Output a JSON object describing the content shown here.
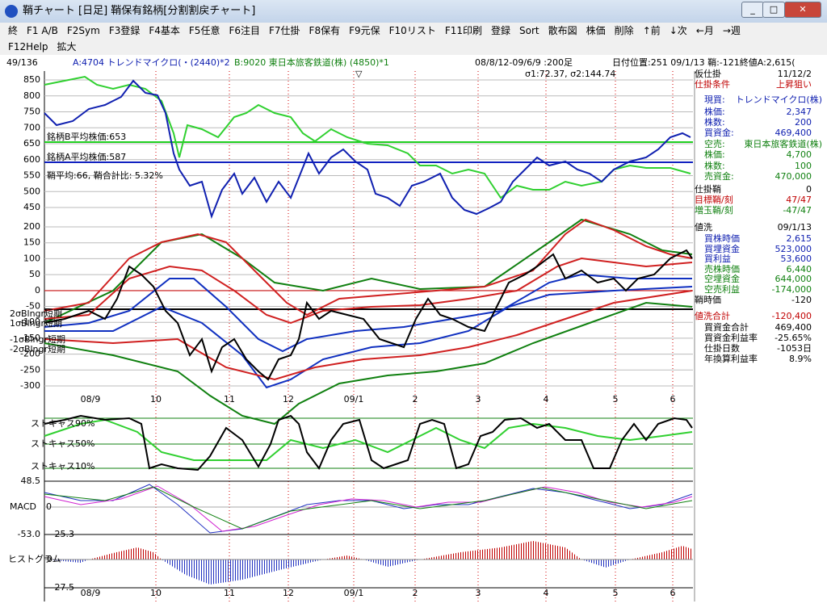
{
  "window": {
    "title": "鞘チャート [日足] 鞘保有銘柄[分割割戻チャート]"
  },
  "menu": [
    [
      "終",
      "F1 A/B",
      "F2Sym",
      "F3登録",
      "F4基本",
      "F5任意",
      "F6注目",
      "F7仕掛",
      "F8保有",
      "F9元保",
      "F10リスト",
      "F11印刷",
      "登録",
      "Sort",
      "散布図",
      "株価",
      "削除",
      "↑前",
      "↓次",
      "←月",
      "→週"
    ],
    [
      "F12Help",
      "拡大"
    ]
  ],
  "info": {
    "count": "49/136",
    "a": "A:4704 トレンドマイクロ(・(2440)*2",
    "b": "B:9020 東日本旅客鉄道(株) (4850)*1",
    "period": "08/8/12-09/6/9 :200足",
    "position": "日付位置:251 09/1/13 鞘:-121終値A:2,615(",
    "sigma": "σ1:72.37, σ2:144.74"
  },
  "price_panel": {
    "yticks": [
      850,
      800,
      750,
      700,
      650,
      600,
      550,
      500,
      450
    ],
    "labels": [
      "銘柄B平均株価:653",
      "銘柄A平均株価:587",
      "鞘平均:66, 鞘合計比: 5.32%"
    ]
  },
  "osc_panel": {
    "yticks": [
      200,
      150,
      100,
      50,
      0,
      -50,
      -100,
      -150,
      -200,
      -250,
      -300
    ],
    "labels": [
      "2σBlngr短期",
      "1σBlngr短期",
      "-1σBlngr短期",
      "-2σBlngr短期"
    ]
  },
  "dates": [
    "08/9",
    "10",
    "11",
    "12",
    "09/1",
    "2",
    "3",
    "4",
    "5",
    "6"
  ],
  "stoch_panel": {
    "labels": [
      "ストキャス90%",
      "ストキャス50%",
      "ストキャス10%"
    ]
  },
  "macd_panel": {
    "label": "MACD",
    "ticks": [
      "48.5",
      "0",
      "-53.0"
    ]
  },
  "hist_panel": {
    "label": "ヒストグラム",
    "ticks": [
      "25.3",
      "0",
      "-27.5"
    ]
  },
  "side": [
    {
      "label": "仮仕掛",
      "value": "11/12/2",
      "color": "#000"
    },
    {
      "label": "仕掛条件",
      "value": "上昇狙い",
      "color": "#c00000"
    },
    {
      "label": "現買:",
      "value": "トレンドマイクロ(株)",
      "color": "#1020b0"
    },
    {
      "label": "株価:",
      "value": "2,347",
      "color": "#1020b0"
    },
    {
      "label": "株数:",
      "value": "200",
      "color": "#1020b0"
    },
    {
      "label": "買資金:",
      "value": "469,400",
      "color": "#1020b0"
    },
    {
      "label": "空売:",
      "value": "東日本旅客鉄道(株)",
      "color": "#108010"
    },
    {
      "label": "株価:",
      "value": "4,700",
      "color": "#108010"
    },
    {
      "label": "株数:",
      "value": "100",
      "color": "#108010"
    },
    {
      "label": "売資金:",
      "value": "470,000",
      "color": "#108010"
    },
    {
      "label": "仕掛鞘",
      "value": "0",
      "color": "#000"
    },
    {
      "label": "目標鞘/刻",
      "value": "47/47",
      "color": "#c00000"
    },
    {
      "label": "増玉鞘/刻",
      "value": "-47/47",
      "color": "#108010"
    },
    {
      "label": "値洗",
      "value": "09/1/13",
      "color": "#000"
    },
    {
      "label": "買株時価",
      "value": "2,615",
      "color": "#1020b0"
    },
    {
      "label": "買埋資金",
      "value": "523,000",
      "color": "#1020b0"
    },
    {
      "label": "買利益",
      "value": "53,600",
      "color": "#1020b0"
    },
    {
      "label": "売株時価",
      "value": "6,440",
      "color": "#108010"
    },
    {
      "label": "空埋資金",
      "value": "644,000",
      "color": "#108010"
    },
    {
      "label": "空売利益",
      "value": "-174,000",
      "color": "#108010"
    },
    {
      "label": "鞘時価",
      "value": "-120",
      "color": "#000"
    },
    {
      "label": "値洗合計",
      "value": "-120,400",
      "color": "#c00000"
    },
    {
      "label": "買資金合計",
      "value": "469,400",
      "color": "#000"
    },
    {
      "label": "買資金利益率",
      "value": "-25.65%",
      "color": "#000"
    },
    {
      "label": "仕掛日数",
      "value": "-1053日",
      "color": "#000"
    },
    {
      "label": "年換算利益率",
      "value": "8.9%",
      "color": "#000"
    }
  ]
}
